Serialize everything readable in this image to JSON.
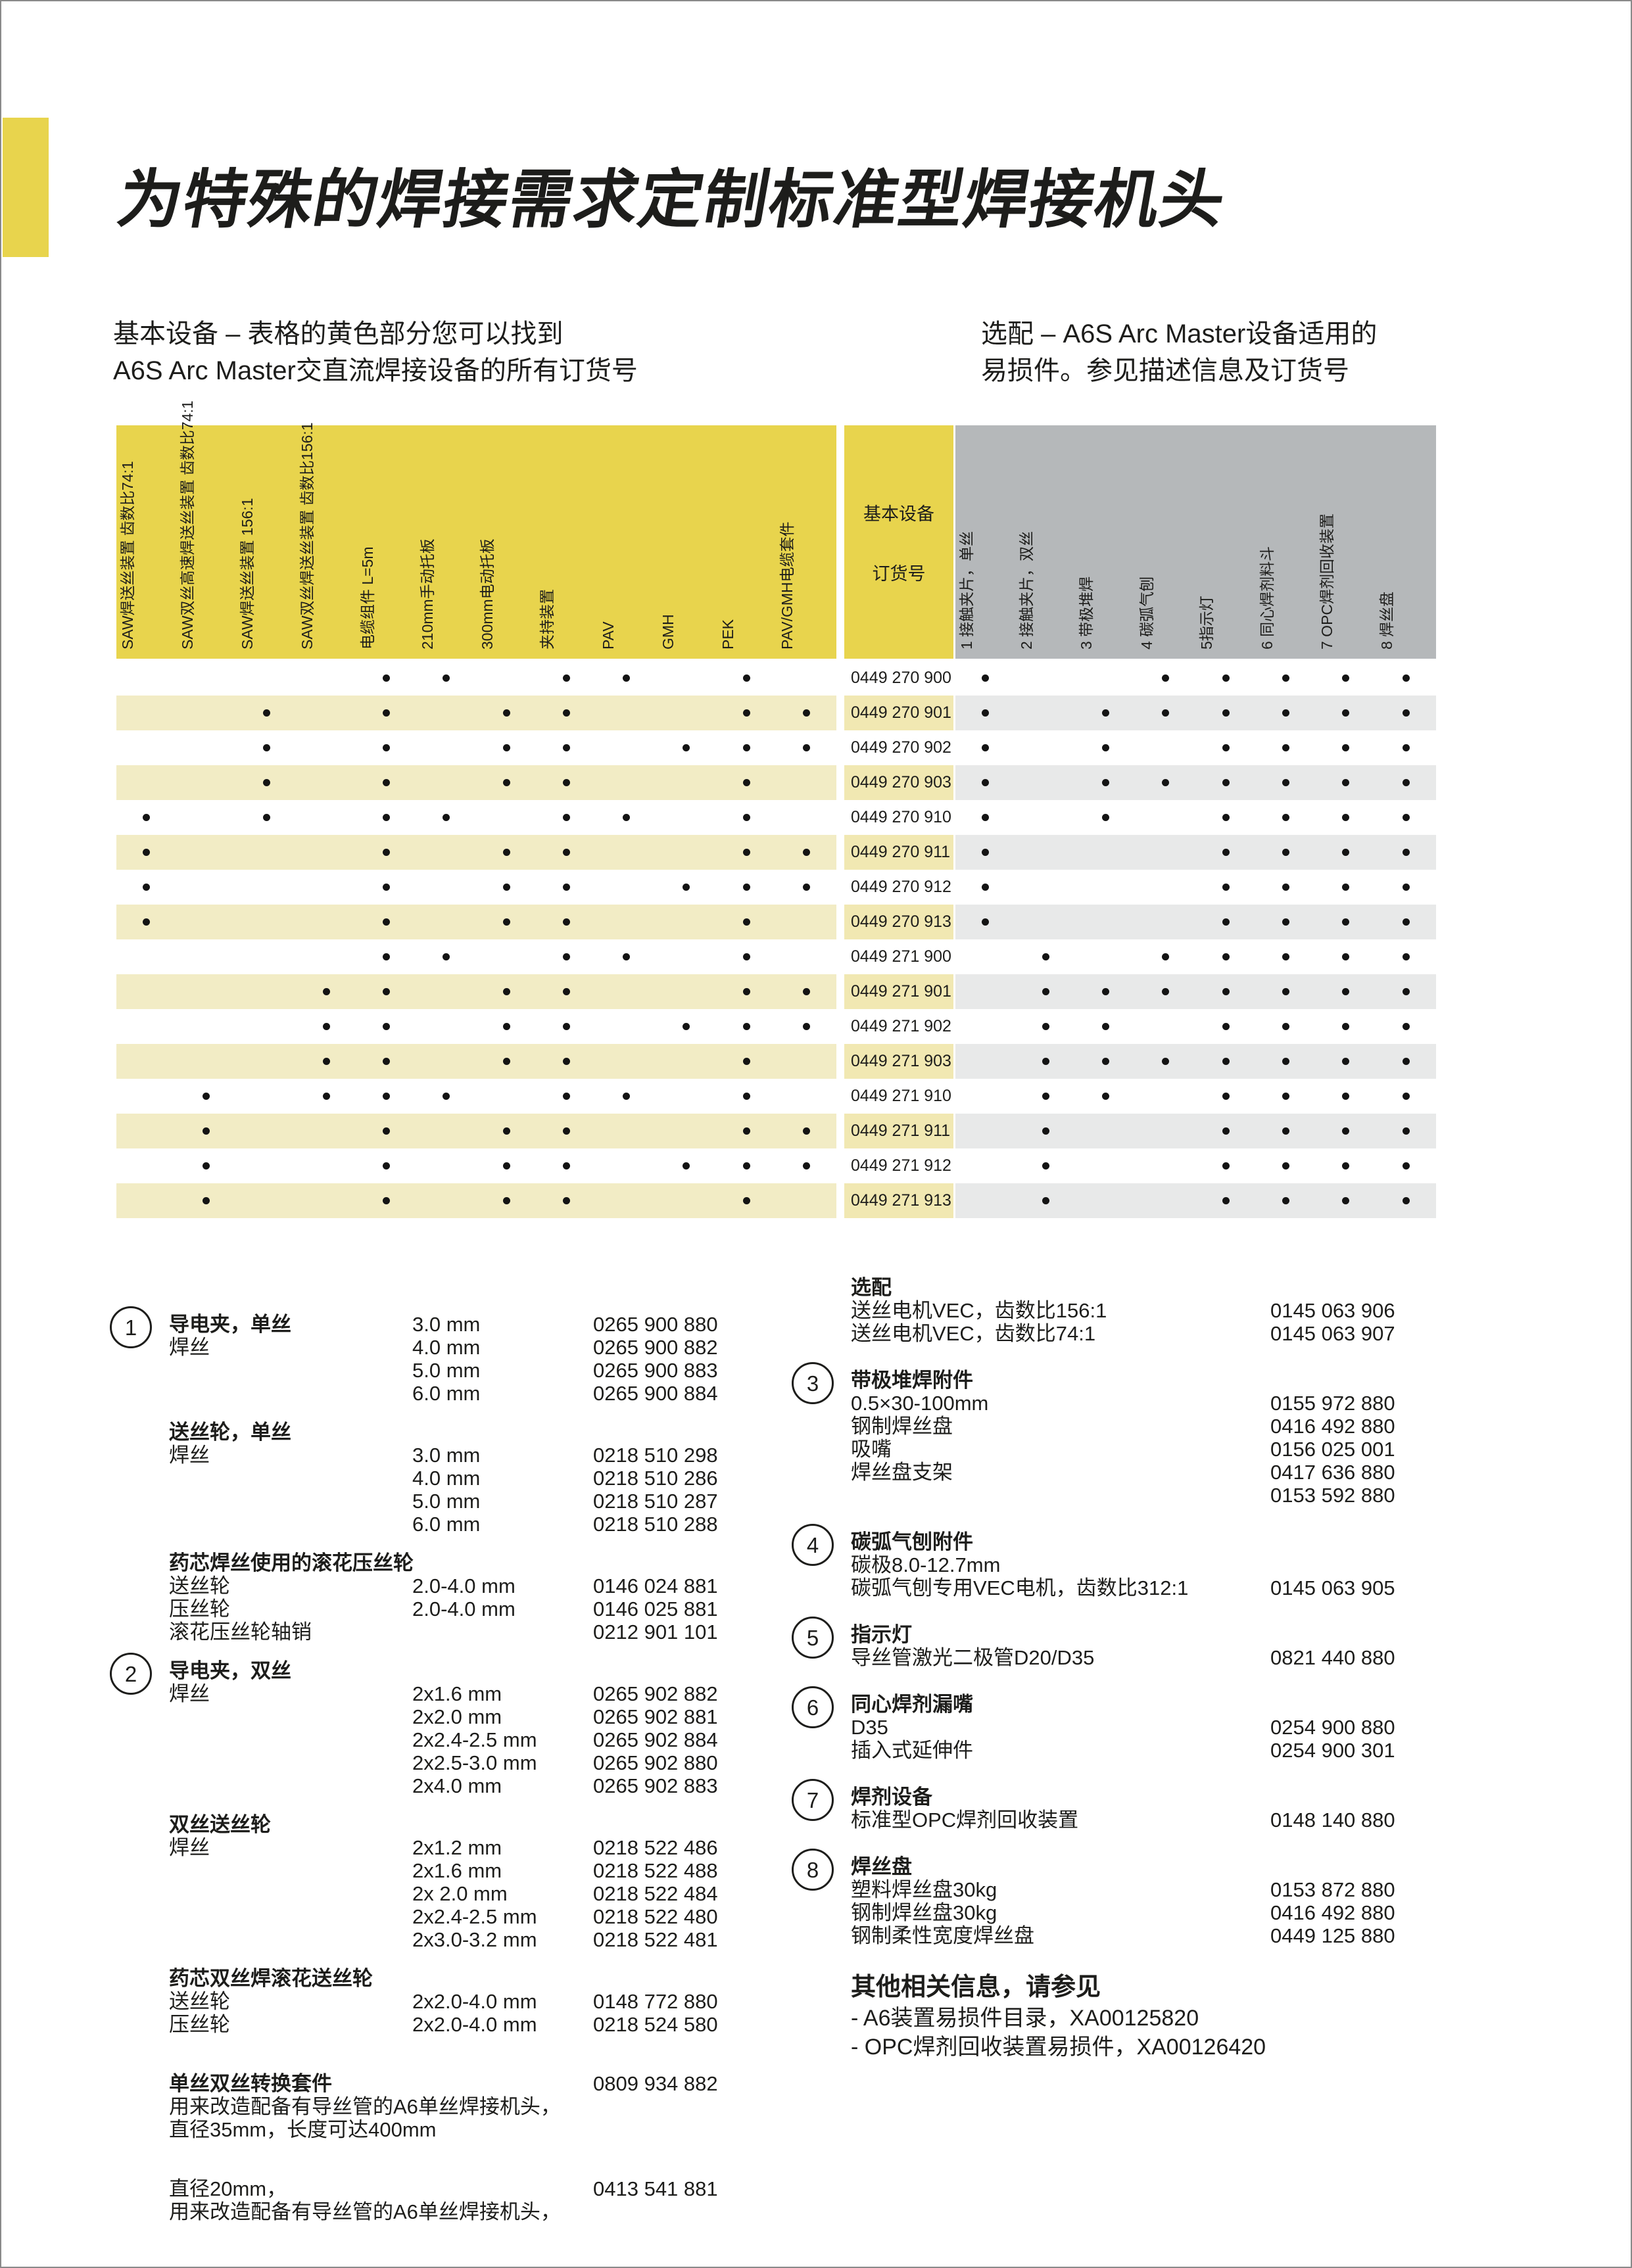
{
  "title": "为特殊的焊接需求定制标准型焊接机头",
  "intro": {
    "left1": "基本设备 – 表格的黄色部分您可以找到",
    "left2": "A6S Arc Master交直流焊接设备的所有订货号",
    "right1": "选配 – A6S Arc Master设备适用的",
    "right2": "易损件。参见描述信息及订货号"
  },
  "colors": {
    "accent_yellow": "#e8d44d",
    "row_stripe_yellow": "#f2ecc5",
    "order_stripe_yellow": "#f1e8b2",
    "header_gray": "#b5b8ba",
    "row_stripe_gray": "#e8e9e9",
    "text": "#1d1d1b"
  },
  "matrix": {
    "yellow_columns": [
      "SAW焊送丝装置 齿数比74:1",
      "SAW双丝高速焊送丝装置 齿数比74:1",
      "SAW焊送丝装置 156:1",
      "SAW双丝焊送丝装置 齿数比156:1",
      "电缆组件 L=5m",
      "210mm手动托板",
      "300mm电动托板",
      "夹持装置",
      "PAV",
      "GMH",
      "PEK",
      "PAV/GMH电缆套件"
    ],
    "order_header": {
      "line1": "基本设备",
      "line2": "订货号"
    },
    "gray_columns": [
      "1 接触夹片，单丝",
      "2 接触夹片，双丝",
      "3 带极堆焊",
      "4 碳弧气刨",
      "5指示灯",
      "6 同心焊剂料斗",
      "7 OPC焊剂回收装置",
      "8 焊丝盘"
    ],
    "rows": [
      {
        "order": "0449 270 900",
        "y": [
          5,
          6,
          8,
          9,
          11
        ],
        "g": [
          1,
          4,
          5,
          6,
          7,
          8
        ]
      },
      {
        "order": "0449 270 901",
        "y": [
          3,
          5,
          7,
          8,
          11,
          12
        ],
        "g": [
          1,
          3,
          4,
          5,
          6,
          7,
          8
        ]
      },
      {
        "order": "0449 270 902",
        "y": [
          3,
          5,
          7,
          8,
          10,
          11,
          12
        ],
        "g": [
          1,
          3,
          5,
          6,
          7,
          8
        ]
      },
      {
        "order": "0449 270 903",
        "y": [
          3,
          5,
          7,
          8,
          11
        ],
        "g": [
          1,
          3,
          4,
          5,
          6,
          7,
          8
        ]
      },
      {
        "order": "0449 270 910",
        "y": [
          1,
          3,
          5,
          6,
          8,
          9,
          11
        ],
        "g": [
          1,
          3,
          5,
          6,
          7,
          8
        ]
      },
      {
        "order": "0449 270 911",
        "y": [
          1,
          5,
          7,
          8,
          11,
          12
        ],
        "g": [
          1,
          5,
          6,
          7,
          8
        ]
      },
      {
        "order": "0449 270 912",
        "y": [
          1,
          5,
          7,
          8,
          10,
          11,
          12
        ],
        "g": [
          1,
          5,
          6,
          7,
          8
        ]
      },
      {
        "order": "0449 270 913",
        "y": [
          1,
          5,
          7,
          8,
          11
        ],
        "g": [
          1,
          5,
          6,
          7,
          8
        ]
      },
      {
        "order": "0449 271 900",
        "y": [
          5,
          6,
          8,
          9,
          11
        ],
        "g": [
          2,
          4,
          5,
          6,
          7,
          8
        ]
      },
      {
        "order": "0449 271 901",
        "y": [
          4,
          5,
          7,
          8,
          11,
          12
        ],
        "g": [
          2,
          3,
          4,
          5,
          6,
          7,
          8
        ]
      },
      {
        "order": "0449 271 902",
        "y": [
          4,
          5,
          7,
          8,
          10,
          11,
          12
        ],
        "g": [
          2,
          3,
          5,
          6,
          7,
          8
        ]
      },
      {
        "order": "0449 271 903",
        "y": [
          4,
          5,
          7,
          8,
          11
        ],
        "g": [
          2,
          3,
          4,
          5,
          6,
          7,
          8
        ]
      },
      {
        "order": "0449 271 910",
        "y": [
          2,
          4,
          5,
          6,
          8,
          9,
          11
        ],
        "g": [
          2,
          3,
          5,
          6,
          7,
          8
        ]
      },
      {
        "order": "0449 271 911",
        "y": [
          2,
          5,
          7,
          8,
          11,
          12
        ],
        "g": [
          2,
          5,
          6,
          7,
          8
        ]
      },
      {
        "order": "0449 271 912",
        "y": [
          2,
          5,
          7,
          8,
          10,
          11,
          12
        ],
        "g": [
          2,
          5,
          6,
          7,
          8
        ]
      },
      {
        "order": "0449 271 913",
        "y": [
          2,
          5,
          7,
          8,
          11
        ],
        "g": [
          2,
          5,
          6,
          7,
          8
        ]
      }
    ]
  },
  "left_sections": [
    {
      "num": "1",
      "rows": [
        {
          "label": "导电夹，单丝",
          "bold": true,
          "size": "3.0 mm",
          "part": "0265 900 880"
        },
        {
          "label": "焊丝",
          "size": "4.0 mm",
          "part": "0265 900 882"
        },
        {
          "label": "",
          "size": "5.0 mm",
          "part": "0265 900 883"
        },
        {
          "label": "",
          "size": "6.0 mm",
          "part": "0265 900 884"
        }
      ]
    },
    {
      "heading": "送丝轮，单丝",
      "rows": [
        {
          "label": "焊丝",
          "size": "3.0 mm",
          "part": "0218 510 298"
        },
        {
          "label": "",
          "size": "4.0 mm",
          "part": "0218 510 286"
        },
        {
          "label": "",
          "size": "5.0 mm",
          "part": "0218 510 287"
        },
        {
          "label": "",
          "size": "6.0 mm",
          "part": "0218 510 288"
        }
      ]
    },
    {
      "heading": "药芯焊丝使用的滚花压丝轮",
      "rows": [
        {
          "label": "送丝轮",
          "size": "2.0-4.0 mm",
          "part": "0146 024 881"
        },
        {
          "label": "压丝轮",
          "size": "2.0-4.0 mm",
          "part": "0146 025 881"
        },
        {
          "label": "滚花压丝轮轴销",
          "size": "",
          "part": "0212 901 101"
        }
      ]
    },
    {
      "num": "2",
      "heading": "导电夹，双丝",
      "rows": [
        {
          "label": "焊丝",
          "size": "2x1.6 mm",
          "part": "0265 902 882"
        },
        {
          "label": "",
          "size": "2x2.0 mm",
          "part": "0265 902 881"
        },
        {
          "label": "",
          "size": "2x2.4-2.5 mm",
          "part": "0265 902 884"
        },
        {
          "label": "",
          "size": "2x2.5-3.0 mm",
          "part": "0265 902 880"
        },
        {
          "label": "",
          "size": "2x4.0 mm",
          "part": "0265 902 883"
        }
      ]
    },
    {
      "heading": "双丝送丝轮",
      "rows": [
        {
          "label": "焊丝",
          "size": "2x1.2 mm",
          "part": "0218 522 486"
        },
        {
          "label": "",
          "size": "2x1.6 mm",
          "part": "0218 522 488"
        },
        {
          "label": "",
          "size": "2x 2.0 mm",
          "part": "0218 522 484"
        },
        {
          "label": "",
          "size": "2x2.4-2.5 mm",
          "part": "0218 522 480"
        },
        {
          "label": "",
          "size": "2x3.0-3.2 mm",
          "part": "0218 522 481"
        }
      ]
    },
    {
      "heading": "药芯双丝焊滚花送丝轮",
      "rows": [
        {
          "label": "送丝轮",
          "size": "2x2.0-4.0 mm",
          "part": "0148 772 880"
        },
        {
          "label": "压丝轮",
          "size": "2x2.0-4.0 mm",
          "part": "0218 524 580"
        }
      ]
    },
    {
      "heading": "单丝双丝转换套件",
      "heading_part": "0809 934 882",
      "gap": "lg",
      "notes": [
        "用来改造配备有导丝管的A6单丝焊接机头，",
        "直径35mm，长度可达400mm"
      ]
    },
    {
      "gap": "lg",
      "notes": [
        "用来改造配备有导丝管的A6单丝焊接机头，"
      ],
      "rows": [
        {
          "label": "直径20mm，",
          "size": "",
          "part": "0413 541 881"
        }
      ]
    }
  ],
  "right_sections": [
    {
      "heading": "选配",
      "rows": [
        {
          "label": "送丝电机VEC，齿数比156:1",
          "part": "0145 063 906"
        },
        {
          "label": "送丝电机VEC，齿数比74:1",
          "part": "0145 063 907"
        }
      ]
    },
    {
      "num": "3",
      "heading": "带极堆焊附件",
      "rows": [
        {
          "label": "0.5×30-100mm",
          "part": "0155 972 880"
        },
        {
          "label": "钢制焊丝盘",
          "part": "0416 492 880"
        },
        {
          "label": "吸嘴",
          "part": "0156 025 001"
        },
        {
          "label": "焊丝盘支架",
          "part": "0417 636 880"
        },
        {
          "label": "",
          "part": "0153 592 880"
        }
      ]
    },
    {
      "num": "4",
      "heading": "碳弧气刨附件",
      "rows": [
        {
          "label": "碳极8.0-12.7mm",
          "part": ""
        },
        {
          "label": "碳弧气刨专用VEC电机，齿数比312:1",
          "part": "0145 063 905"
        }
      ]
    },
    {
      "num": "5",
      "heading": "指示灯",
      "rows": [
        {
          "label": "导丝管激光二极管D20/D35",
          "part": "0821 440 880"
        }
      ]
    },
    {
      "num": "6",
      "heading": "同心焊剂漏嘴",
      "rows": [
        {
          "label": "D35",
          "part": "0254 900 880"
        },
        {
          "label": "插入式延伸件",
          "part": "0254 900 301"
        }
      ]
    },
    {
      "num": "7",
      "heading": "焊剂设备",
      "rows": [
        {
          "label": "标准型OPC焊剂回收装置",
          "part": "0148 140 880"
        }
      ]
    },
    {
      "num": "8",
      "heading": "焊丝盘",
      "rows": [
        {
          "label": "塑料焊丝盘30kg",
          "part": "0153 872 880"
        },
        {
          "label": "钢制焊丝盘30kg",
          "part": "0416 492 880"
        },
        {
          "label": "钢制柔性宽度焊丝盘",
          "part": "0449 125 880"
        }
      ]
    },
    {
      "heading_large": "其他相关信息，请参见",
      "notes": [
        "- A6装置易损件目录，XA00125820",
        "- OPC焊剂回收装置易损件，XA00126420"
      ]
    }
  ]
}
